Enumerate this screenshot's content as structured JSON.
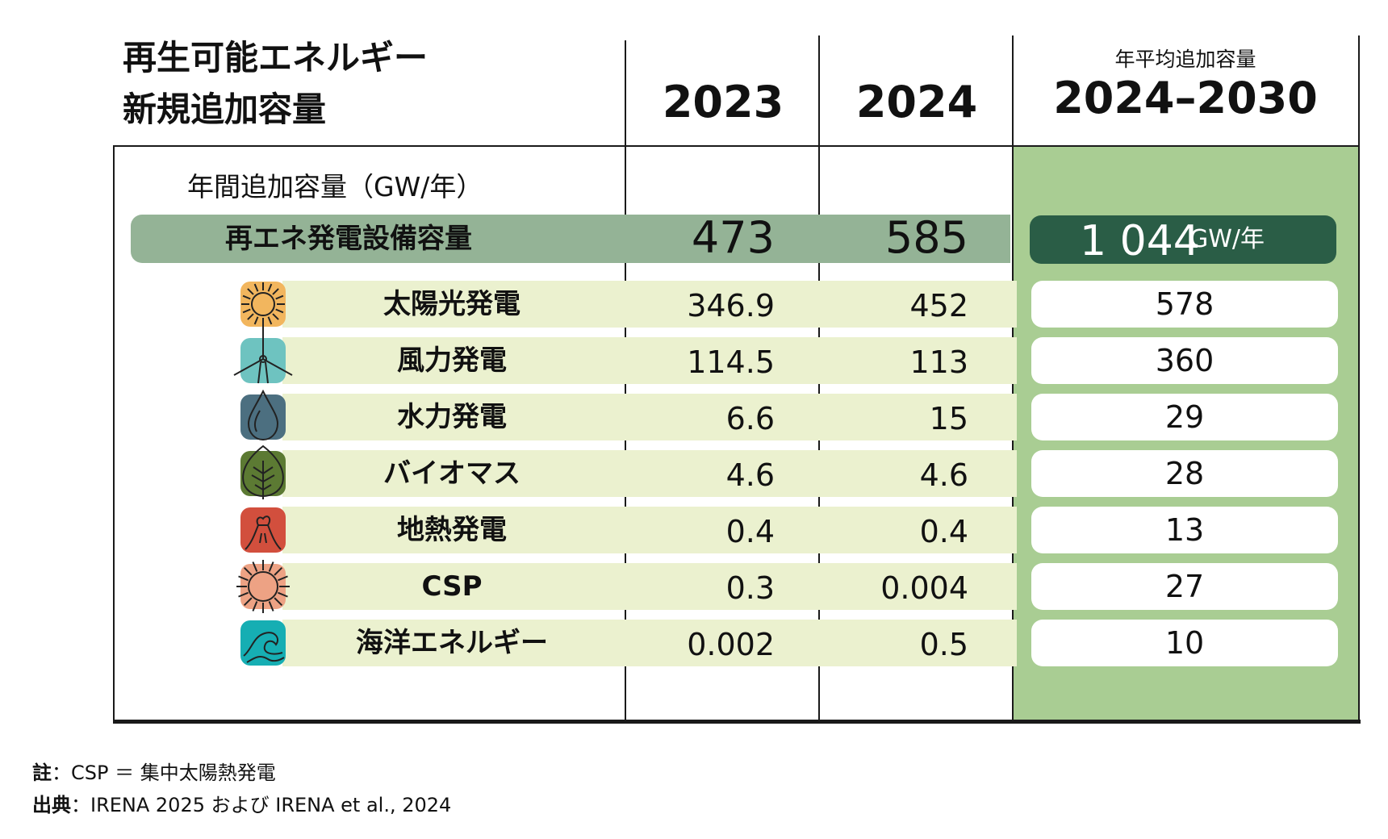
{
  "header": {
    "title_line1": "再生可能エネルギー",
    "title_line2": "新規追加容量",
    "col_2023": "2023",
    "col_2024": "2024",
    "col_avg_label": "年平均追加容量",
    "col_avg_range": "2024–2030"
  },
  "subtitle": "年間追加容量（GW/年）",
  "total": {
    "label": "再エネ発電設備容量",
    "v2023": "473",
    "v2024": "585",
    "avg": "1 044",
    "unit": "GW/年"
  },
  "rows": [
    {
      "label": "太陽光発電",
      "v2023": "346.9",
      "v2024": "452",
      "avg": "578",
      "icon": "sun-icon"
    },
    {
      "label": "風力発電",
      "v2023": "114.5",
      "v2024": "113",
      "avg": "360",
      "icon": "wind-turbine-icon"
    },
    {
      "label": "水力発電",
      "v2023": "6.6",
      "v2024": "15",
      "avg": "29",
      "icon": "water-drop-icon"
    },
    {
      "label": "バイオマス",
      "v2023": "4.6",
      "v2024": "4.6",
      "avg": "28",
      "icon": "leaf-icon"
    },
    {
      "label": "地熱発電",
      "v2023": "0.4",
      "v2024": "0.4",
      "avg": "13",
      "icon": "geothermal-icon"
    },
    {
      "label": "CSP",
      "v2023": "0.3",
      "v2024": "0.004",
      "avg": "27",
      "icon": "csp-sun-icon"
    },
    {
      "label": "海洋エネルギー",
      "v2023": "0.002",
      "v2024": "0.5",
      "avg": "10",
      "icon": "wave-icon"
    }
  ],
  "notes": {
    "note_label": "註",
    "note_text": "：CSP ＝ 集中太陽熱発電",
    "source_label": "出典",
    "source_text": "：IRENA 2025 および IRENA et al., 2024"
  },
  "colors": {
    "green_column": "#a9cd93",
    "total_bar": "#94b396",
    "total_pill": "#2a5d46",
    "row_bar": "#ebf1cf",
    "solar": "#f2b65e",
    "wind": "#6ec3c0",
    "hydro": "#4c6f80",
    "biomass": "#5c7a33",
    "geothermal": "#d24f3d",
    "csp": "#eda284",
    "ocean": "#16aeb3"
  },
  "chart_data": {
    "type": "table",
    "columns": [
      "2023",
      "2024",
      "2024–2030"
    ],
    "categories": [
      "再エネ発電設備容量",
      "太陽光発電",
      "風力発電",
      "水力発電",
      "バイオマス",
      "地熱発電",
      "CSP",
      "海洋エネルギー"
    ],
    "series": [
      {
        "name": "2023",
        "values": [
          473,
          346.9,
          114.5,
          6.6,
          4.6,
          0.4,
          0.3,
          0.002
        ]
      },
      {
        "name": "2024",
        "values": [
          585,
          452,
          113,
          15,
          4.6,
          0.4,
          0.004,
          0.5
        ]
      },
      {
        "name": "2024–2030",
        "values": [
          1044,
          578,
          360,
          29,
          28,
          13,
          27,
          10
        ]
      }
    ]
  }
}
